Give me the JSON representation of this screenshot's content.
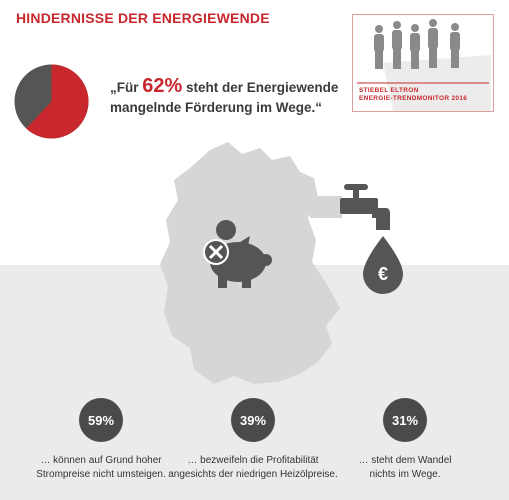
{
  "title": "HINDERNISSE DER ENERGIEWENDE",
  "brand": {
    "line1": "STIEBEL ELTRON",
    "line2": "ENERGIE-TRENDMONITOR 2016"
  },
  "quote": {
    "prefix": "„Für ",
    "pct": "62%",
    "line1_rest": " steht der Energiewende",
    "line2": "mangelnde Förderung im Wege.“"
  },
  "icons": [
    "pie-chart",
    "germany-map",
    "piggy-bank",
    "blocked-x",
    "coin",
    "water-tap",
    "euro-drop"
  ],
  "colors": {
    "accent": "#c8282d",
    "dark": "#4a4a4a",
    "map": "#d6d6d6",
    "band": "#ebebeb"
  },
  "chart_data": {
    "type": "pie",
    "title": "",
    "slices": [
      {
        "label": "",
        "value": 62,
        "color": "#c8282d"
      },
      {
        "label": "",
        "value": 38,
        "color": "#555555"
      }
    ],
    "stats": [
      {
        "value": "59%",
        "text": "… können auf Grund hoher\nStrompreise nicht umsteigen."
      },
      {
        "value": "39%",
        "text": "… bezweifeln die Profitabilität\nangesichts der niedrigen Heizölpreise."
      },
      {
        "value": "31%",
        "text": "… steht dem Wandel\nnichts im Wege."
      }
    ]
  }
}
